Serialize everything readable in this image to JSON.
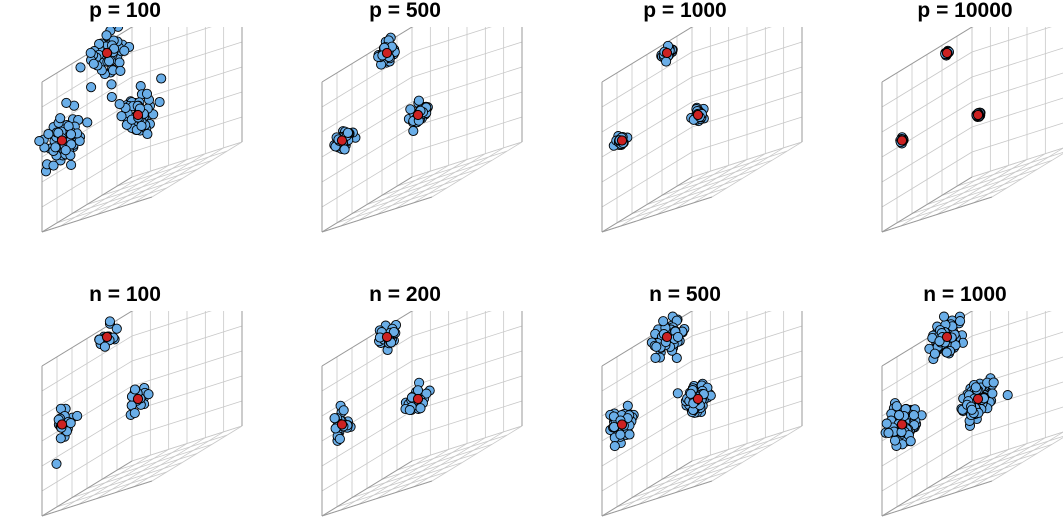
{
  "colors": {
    "point_fill": "#6aaee8",
    "point_stroke": "#000000",
    "center_fill": "#cc2222",
    "grid": "#c8c8c8",
    "box_edge": "#9a9a9a"
  },
  "chart_data": [
    {
      "type": "scatter3d",
      "title": "p = 100",
      "grid": true,
      "clusters": [
        {
          "center": [
            0.1,
            0.1,
            0.55
          ],
          "spread": 0.085,
          "count": 60,
          "outliers": [
            [
              0.18,
              0.05,
              0.8
            ]
          ]
        },
        {
          "center": [
            0.75,
            0.15,
            0.55
          ],
          "spread": 0.075,
          "count": 55,
          "outliers": [
            [
              0.55,
              0.1,
              0.82
            ]
          ]
        },
        {
          "center": [
            0.1,
            0.6,
            0.95
          ],
          "spread": 0.085,
          "count": 55,
          "outliers": []
        }
      ]
    },
    {
      "type": "scatter3d",
      "title": "p = 500",
      "grid": true,
      "clusters": [
        {
          "center": [
            0.1,
            0.1,
            0.55
          ],
          "spread": 0.035,
          "count": 40,
          "outliers": []
        },
        {
          "center": [
            0.75,
            0.15,
            0.55
          ],
          "spread": 0.035,
          "count": 40,
          "outliers": []
        },
        {
          "center": [
            0.1,
            0.6,
            0.95
          ],
          "spread": 0.035,
          "count": 40,
          "outliers": []
        }
      ]
    },
    {
      "type": "scatter3d",
      "title": "p = 1000",
      "grid": true,
      "clusters": [
        {
          "center": [
            0.1,
            0.1,
            0.55
          ],
          "spread": 0.022,
          "count": 35,
          "outliers": []
        },
        {
          "center": [
            0.75,
            0.15,
            0.55
          ],
          "spread": 0.022,
          "count": 35,
          "outliers": []
        },
        {
          "center": [
            0.1,
            0.6,
            0.95
          ],
          "spread": 0.022,
          "count": 35,
          "outliers": []
        }
      ]
    },
    {
      "type": "scatter3d",
      "title": "p = 10000",
      "grid": true,
      "clusters": [
        {
          "center": [
            0.1,
            0.1,
            0.55
          ],
          "spread": 0.008,
          "count": 25,
          "outliers": []
        },
        {
          "center": [
            0.75,
            0.15,
            0.55
          ],
          "spread": 0.008,
          "count": 25,
          "outliers": []
        },
        {
          "center": [
            0.1,
            0.6,
            0.95
          ],
          "spread": 0.008,
          "count": 25,
          "outliers": []
        }
      ]
    },
    {
      "type": "scatter3d",
      "title": "n = 100",
      "grid": true,
      "clusters": [
        {
          "center": [
            0.1,
            0.1,
            0.55
          ],
          "spread": 0.045,
          "count": 20,
          "outliers": [
            [
              0.05,
              0.1,
              0.3
            ],
            [
              0.22,
              0.05,
              0.55
            ]
          ]
        },
        {
          "center": [
            0.75,
            0.15,
            0.55
          ],
          "spread": 0.045,
          "count": 20,
          "outliers": []
        },
        {
          "center": [
            0.1,
            0.6,
            0.95
          ],
          "spread": 0.045,
          "count": 20,
          "outliers": []
        }
      ]
    },
    {
      "type": "scatter3d",
      "title": "n = 200",
      "grid": true,
      "clusters": [
        {
          "center": [
            0.1,
            0.1,
            0.55
          ],
          "spread": 0.048,
          "count": 30,
          "outliers": []
        },
        {
          "center": [
            0.75,
            0.15,
            0.55
          ],
          "spread": 0.048,
          "count": 30,
          "outliers": []
        },
        {
          "center": [
            0.1,
            0.6,
            0.95
          ],
          "spread": 0.048,
          "count": 30,
          "outliers": []
        }
      ]
    },
    {
      "type": "scatter3d",
      "title": "n = 500",
      "grid": true,
      "clusters": [
        {
          "center": [
            0.1,
            0.1,
            0.55
          ],
          "spread": 0.055,
          "count": 70,
          "outliers": []
        },
        {
          "center": [
            0.75,
            0.15,
            0.55
          ],
          "spread": 0.055,
          "count": 70,
          "outliers": []
        },
        {
          "center": [
            0.1,
            0.6,
            0.95
          ],
          "spread": 0.055,
          "count": 70,
          "outliers": []
        }
      ]
    },
    {
      "type": "scatter3d",
      "title": "n = 1000",
      "grid": true,
      "clusters": [
        {
          "center": [
            0.1,
            0.1,
            0.55
          ],
          "spread": 0.058,
          "count": 110,
          "outliers": []
        },
        {
          "center": [
            0.75,
            0.15,
            0.55
          ],
          "spread": 0.058,
          "count": 110,
          "outliers": []
        },
        {
          "center": [
            0.1,
            0.6,
            0.95
          ],
          "spread": 0.058,
          "count": 110,
          "outliers": []
        }
      ]
    }
  ]
}
